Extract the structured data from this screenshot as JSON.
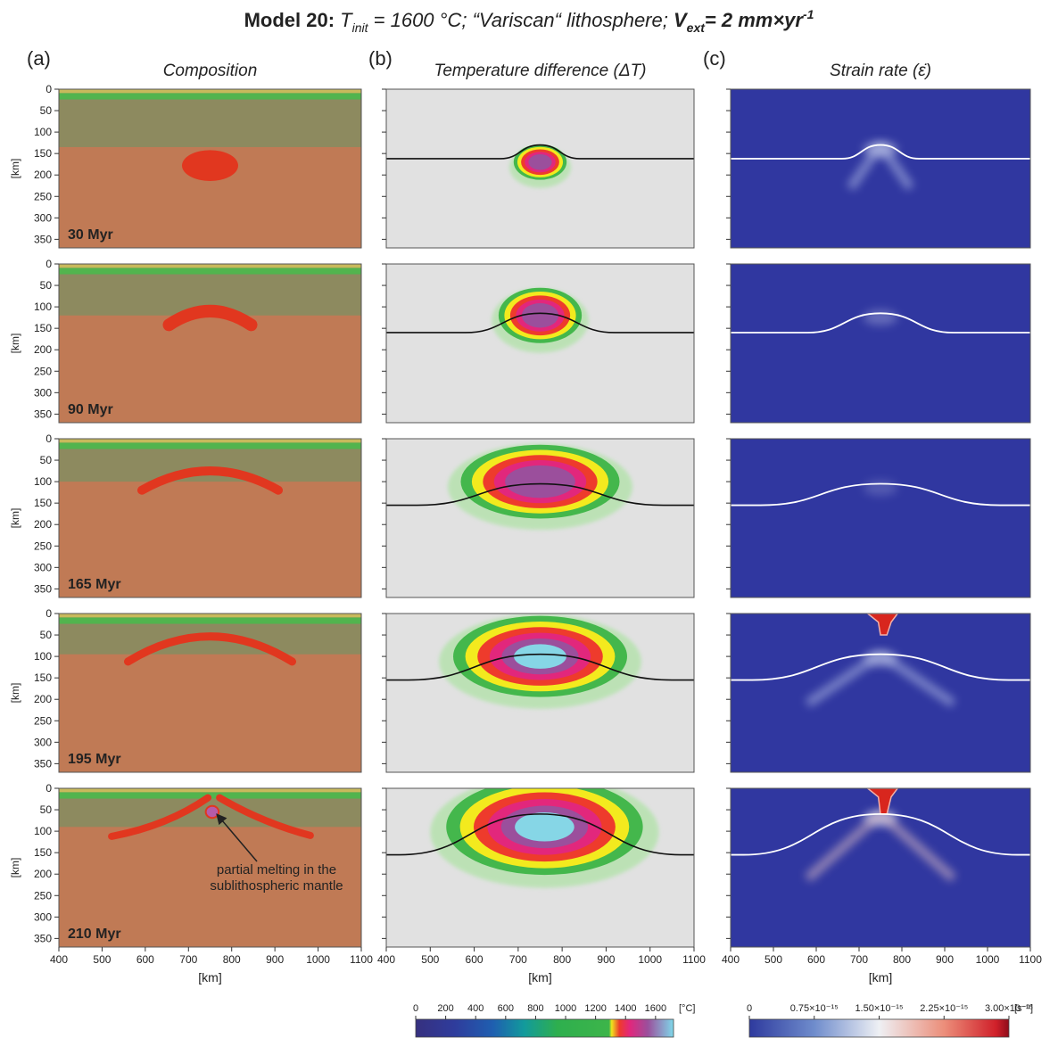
{
  "title": {
    "model": "Model 20:",
    "t_symbol": "T",
    "t_sub": "init",
    "t_text": " = 1600 °C; “Variscan“ lithosphere; ",
    "v_symbol": "V",
    "v_sub": "ext",
    "v_text": "= 2 mm×yr",
    "v_sup": "-1"
  },
  "panels": [
    {
      "letter": "(a)",
      "title": "Composition"
    },
    {
      "letter": "(b)",
      "title": "Temperature difference (ΔT)"
    },
    {
      "letter": "(c)",
      "title": "Strain rate (ε̇)"
    }
  ],
  "times": [
    "30 Myr",
    "90 Myr",
    "165 Myr",
    "195 Myr",
    "210 Myr"
  ],
  "x_axis": {
    "label": "[km]",
    "lim": [
      400,
      1100
    ],
    "ticks": [
      400,
      500,
      600,
      700,
      800,
      900,
      1000,
      1100
    ]
  },
  "y_axis": {
    "label": "[km]",
    "lim": [
      0,
      370
    ],
    "ticks": [
      0,
      50,
      100,
      150,
      200,
      250,
      300,
      350
    ]
  },
  "annotation": [
    "partial melting in the",
    "sublithospheric mantle"
  ],
  "temperature_colorbar": {
    "unit": "[°C]",
    "lim": [
      0,
      1720
    ],
    "ticks": [
      0,
      200,
      400,
      600,
      800,
      1000,
      1200,
      1400,
      1600
    ]
  },
  "strain_colorbar": {
    "unit": "[s⁻¹]",
    "lim": [
      0,
      3e-15
    ],
    "ticks": [
      0,
      {
        "value": 7.5e-16,
        "label": "0.75×10⁻¹⁵"
      },
      {
        "value": 1.5e-15,
        "label": "1.50×10⁻¹⁵"
      },
      {
        "value": 2.25e-15,
        "label": "2.25×10⁻¹⁵"
      },
      {
        "value": 3e-15,
        "label": "3.00×10⁻¹⁵"
      }
    ]
  }
}
